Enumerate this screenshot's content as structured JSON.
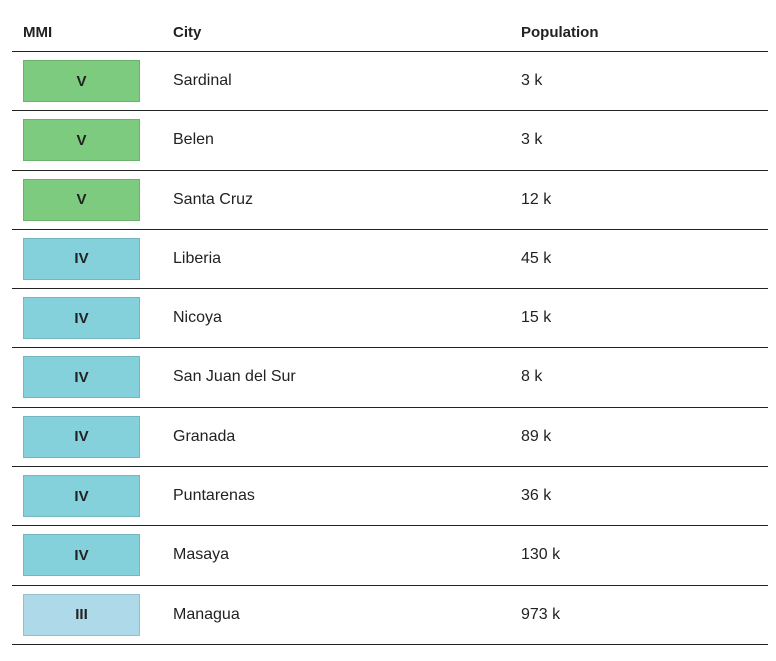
{
  "table": {
    "header": [
      "MMI",
      "City",
      "Population"
    ],
    "mmi_colors": {
      "V": "#7ccb7e",
      "IV": "#84d1dc",
      "III": "#add9e9"
    },
    "rows": [
      [
        "V",
        "Sardinal",
        "3 k"
      ],
      [
        "V",
        "Belen",
        "3 k"
      ],
      [
        "V",
        "Santa Cruz",
        "12 k"
      ],
      [
        "IV",
        "Liberia",
        "45 k"
      ],
      [
        "IV",
        "Nicoya",
        "15 k"
      ],
      [
        "IV",
        "San Juan del Sur",
        "8 k"
      ],
      [
        "IV",
        "Granada",
        "89 k"
      ],
      [
        "IV",
        "Puntarenas",
        "36 k"
      ],
      [
        "IV",
        "Masaya",
        "130 k"
      ],
      [
        "III",
        "Managua",
        "973 k"
      ]
    ]
  }
}
